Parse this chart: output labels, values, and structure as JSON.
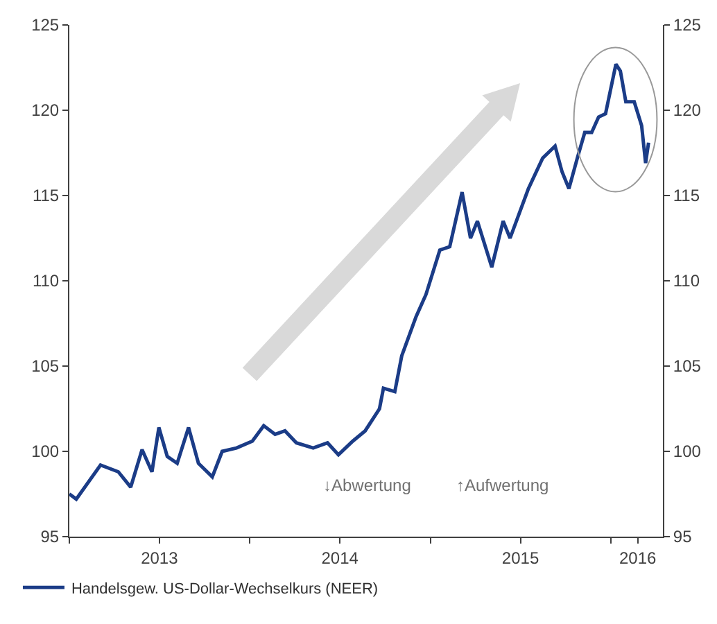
{
  "chart_data": {
    "type": "line",
    "x": [
      "2013-01-01",
      "2013-01-15",
      "2013-03-05",
      "2013-04-10",
      "2013-05-05",
      "2013-05-28",
      "2013-06-17",
      "2013-07-01",
      "2013-07-18",
      "2013-08-07",
      "2013-08-30",
      "2013-09-19",
      "2013-10-17",
      "2013-11-06",
      "2013-12-05",
      "2014-01-06",
      "2014-01-29",
      "2014-02-21",
      "2014-03-13",
      "2014-04-05",
      "2014-05-09",
      "2014-06-07",
      "2014-06-29",
      "2014-07-28",
      "2014-08-22",
      "2014-09-20",
      "2014-09-28",
      "2014-10-21",
      "2014-11-04",
      "2014-12-03",
      "2014-12-23",
      "2015-01-20",
      "2015-02-09",
      "2015-03-06",
      "2015-03-23",
      "2015-04-06",
      "2015-05-05",
      "2015-05-28",
      "2015-06-11",
      "2015-07-18",
      "2015-08-16",
      "2015-09-10",
      "2015-09-24",
      "2015-10-08",
      "2015-10-25",
      "2015-11-09",
      "2015-11-23",
      "2015-12-07",
      "2015-12-21",
      "2016-01-11",
      "2016-01-20",
      "2016-01-31",
      "2016-02-17",
      "2016-03-03",
      "2016-03-11",
      "2016-03-17"
    ],
    "series": [
      {
        "name": "Handelsgew. US-Dollar-Wechselkurs (NEER)",
        "color": "#1b3c87",
        "values": [
          97.5,
          97.2,
          99.2,
          98.8,
          97.9,
          100.1,
          98.8,
          101.4,
          99.7,
          99.3,
          101.4,
          99.3,
          98.5,
          100.0,
          100.2,
          100.6,
          101.5,
          101.0,
          101.2,
          100.5,
          100.2,
          100.5,
          99.8,
          100.6,
          101.2,
          102.5,
          103.7,
          103.5,
          105.6,
          107.9,
          109.2,
          111.8,
          112.0,
          115.2,
          112.5,
          113.5,
          110.8,
          113.5,
          112.5,
          115.4,
          117.2,
          117.9,
          116.4,
          115.4,
          117.2,
          118.7,
          118.7,
          119.6,
          119.8,
          122.7,
          122.3,
          120.5,
          120.5,
          119.1,
          116.9,
          118.1
        ]
      }
    ],
    "xlim": [
      "2013-01-01",
      "2016-04-15"
    ],
    "xticks": [
      {
        "value": "2013-01-01",
        "label": null
      },
      {
        "value": "2013-07-02",
        "label": "2013"
      },
      {
        "value": "2014-01-01",
        "label": null
      },
      {
        "value": "2014-07-02",
        "label": "2014"
      },
      {
        "value": "2015-01-01",
        "label": null
      },
      {
        "value": "2015-07-02",
        "label": "2015"
      },
      {
        "value": "2016-01-01",
        "label": null
      },
      {
        "value": "2016-02-24",
        "label": "2016"
      }
    ],
    "ylim": [
      95,
      125
    ],
    "yticks": [
      95,
      100,
      105,
      110,
      115,
      120,
      125
    ],
    "y2lim": [
      95,
      125
    ],
    "y2ticks": [
      95,
      100,
      105,
      110,
      115,
      120,
      125
    ],
    "annotations": [
      "↓Abwertung",
      "↑Aufwertung"
    ],
    "legend": "bottom left",
    "line_style": "solid",
    "marker": "none"
  }
}
